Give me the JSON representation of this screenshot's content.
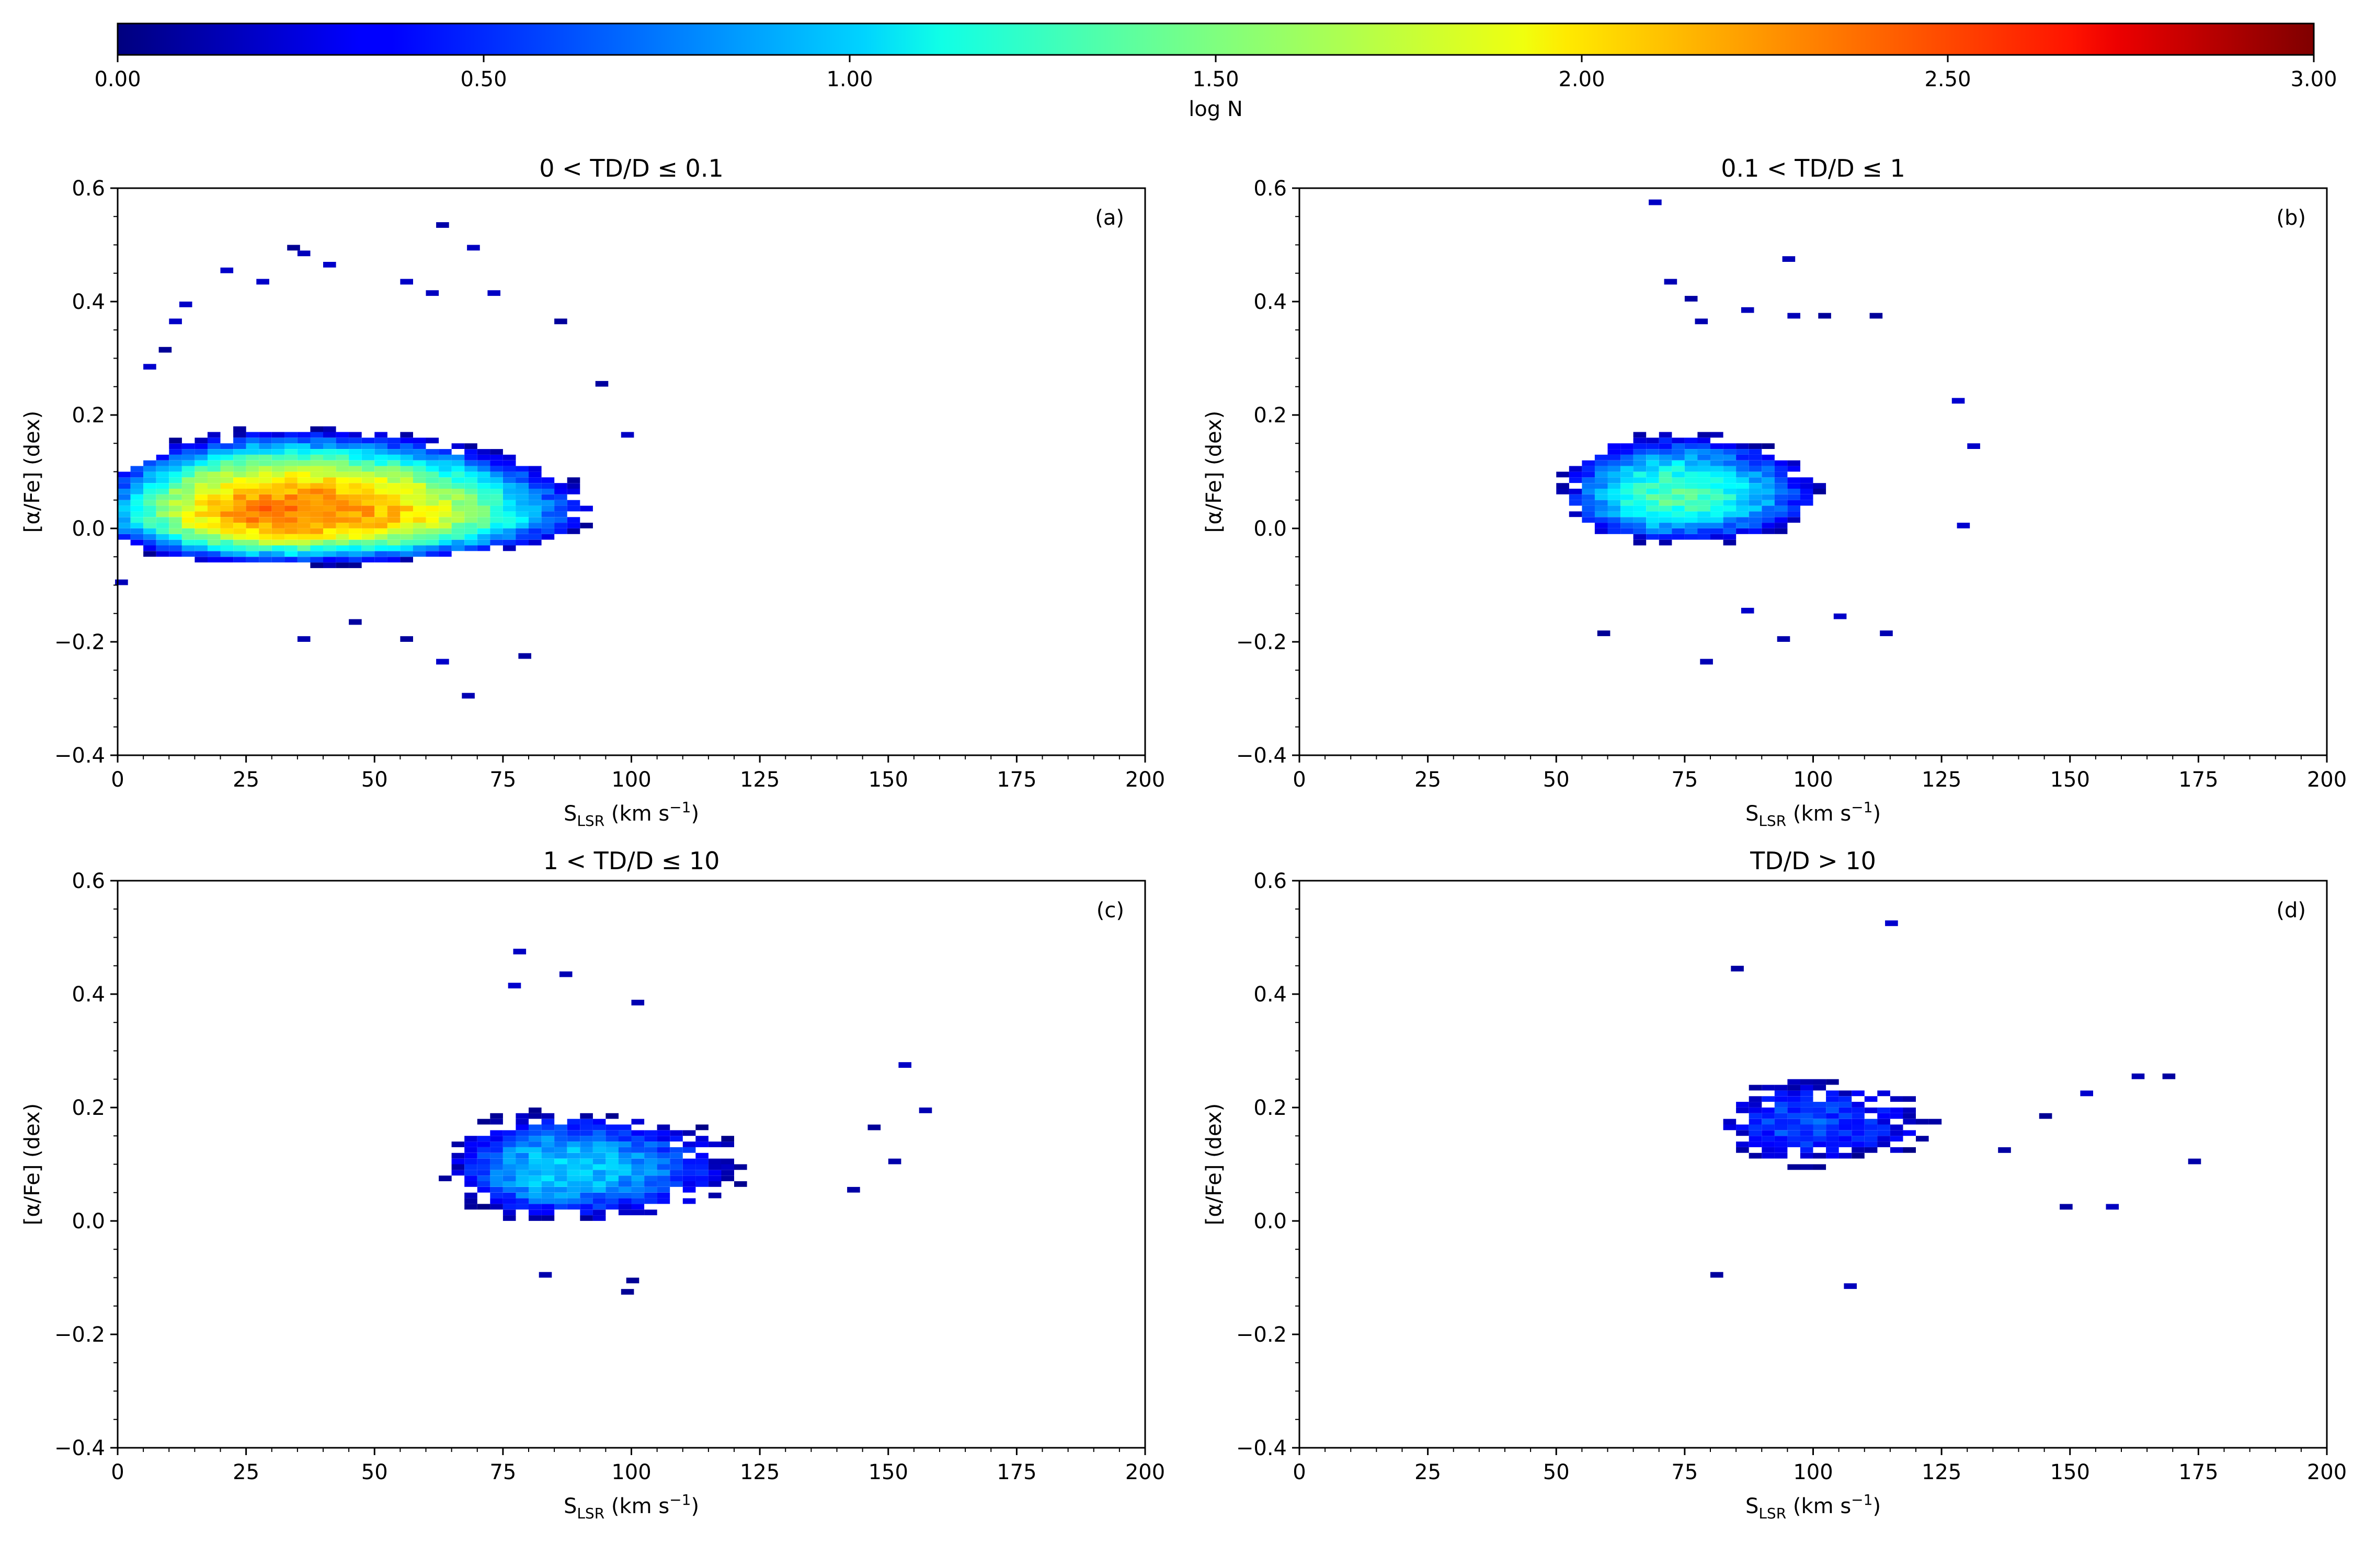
{
  "colorbar": {
    "label": "log N",
    "ticks": [
      "0.00",
      "0.50",
      "1.00",
      "1.50",
      "2.00",
      "2.50",
      "3.00"
    ],
    "range": [
      0,
      3
    ],
    "colormap": "jet"
  },
  "chart_data": [
    {
      "type": "heatmap",
      "panel": "(a)",
      "title": "0 < TD/D ≤ 0.1",
      "xlabel": "S_LSR (km s−1)",
      "ylabel": "[α/Fe] (dex)",
      "xlim": [
        0,
        200
      ],
      "ylim": [
        -0.4,
        0.6
      ],
      "xticks": [
        "0",
        "25",
        "50",
        "75",
        "100",
        "125",
        "150",
        "175",
        "200"
      ],
      "yticks": [
        "−0.4",
        "−0.2",
        "0.0",
        "0.2",
        "0.4",
        "0.6"
      ],
      "bin_width": [
        2.5,
        0.01
      ],
      "peak": {
        "x": 33,
        "y": 0.025,
        "logN": 2.3
      },
      "spread": {
        "x_low": 20,
        "x_high": 30,
        "y_low": 0.045,
        "y_high": 0.075
      },
      "x_range": [
        0,
        100
      ],
      "scatter_points": [
        [
          20,
          0.45
        ],
        [
          33,
          0.49
        ],
        [
          35,
          0.48
        ],
        [
          62,
          0.53
        ],
        [
          68,
          0.49
        ],
        [
          40,
          0.46
        ],
        [
          55,
          0.43
        ],
        [
          27,
          0.43
        ],
        [
          60,
          0.41
        ],
        [
          72,
          0.41
        ],
        [
          85,
          0.36
        ],
        [
          10,
          0.36
        ],
        [
          93,
          0.25
        ],
        [
          98,
          0.16
        ],
        [
          -0.5,
          -0.1
        ],
        [
          45,
          -0.17
        ],
        [
          55,
          -0.2
        ],
        [
          62,
          -0.24
        ],
        [
          67,
          -0.3
        ],
        [
          78,
          -0.23
        ],
        [
          35,
          -0.2
        ],
        [
          5,
          0.28
        ],
        [
          8,
          0.31
        ],
        [
          12,
          0.39
        ]
      ]
    },
    {
      "type": "heatmap",
      "panel": "(b)",
      "title": "0.1 < TD/D ≤ 1",
      "xlabel": "S_LSR (km s−1)",
      "ylabel": "[α/Fe] (dex)",
      "xlim": [
        0,
        200
      ],
      "ylim": [
        -0.4,
        0.6
      ],
      "xticks": [
        "0",
        "25",
        "50",
        "75",
        "100",
        "125",
        "150",
        "175",
        "200"
      ],
      "yticks": [
        "−0.4",
        "−0.2",
        "0.0",
        "0.2",
        "0.4",
        "0.6"
      ],
      "bin_width": [
        2.5,
        0.01
      ],
      "peak": {
        "x": 72,
        "y": 0.055,
        "logN": 1.35
      },
      "spread": {
        "x_low": 14,
        "x_high": 20,
        "y_low": 0.055,
        "y_high": 0.075
      },
      "x_range": [
        44,
        130
      ],
      "scatter_points": [
        [
          68,
          0.57
        ],
        [
          94,
          0.47
        ],
        [
          71,
          0.43
        ],
        [
          75,
          0.4
        ],
        [
          77,
          0.36
        ],
        [
          86,
          0.38
        ],
        [
          58,
          -0.19
        ],
        [
          78,
          -0.24
        ],
        [
          93,
          -0.2
        ],
        [
          113,
          -0.19
        ],
        [
          86,
          -0.15
        ],
        [
          104,
          -0.16
        ],
        [
          128,
          0.0
        ],
        [
          130,
          0.14
        ],
        [
          127,
          0.22
        ],
        [
          95,
          0.37
        ],
        [
          101,
          0.37
        ],
        [
          111,
          0.37
        ]
      ]
    },
    {
      "type": "heatmap",
      "panel": "(c)",
      "title": "1 < TD/D ≤ 10",
      "xlabel": "S_LSR (km s−1)",
      "ylabel": "[α/Fe] (dex)",
      "xlim": [
        0,
        200
      ],
      "ylim": [
        -0.4,
        0.6
      ],
      "xticks": [
        "0",
        "25",
        "50",
        "75",
        "100",
        "125",
        "150",
        "175",
        "200"
      ],
      "yticks": [
        "−0.4",
        "−0.2",
        "0.0",
        "0.2",
        "0.4",
        "0.6"
      ],
      "bin_width": [
        2.5,
        0.01
      ],
      "peak": {
        "x": 85,
        "y": 0.09,
        "logN": 1.0
      },
      "spread": {
        "x_low": 16,
        "x_high": 28,
        "y_low": 0.07,
        "y_high": 0.08
      },
      "x_range": [
        58,
        158
      ],
      "scatter_points": [
        [
          77,
          0.47
        ],
        [
          86,
          0.43
        ],
        [
          100,
          0.38
        ],
        [
          76,
          0.41
        ],
        [
          152,
          0.27
        ],
        [
          156,
          0.19
        ],
        [
          99,
          -0.11
        ],
        [
          98,
          -0.13
        ],
        [
          82,
          -0.1
        ],
        [
          142,
          0.05
        ],
        [
          150,
          0.1
        ],
        [
          146,
          0.16
        ]
      ]
    },
    {
      "type": "heatmap",
      "panel": "(d)",
      "title": "TD/D > 10",
      "xlabel": "S_LSR (km s−1)",
      "ylabel": "[α/Fe] (dex)",
      "xlim": [
        0,
        200
      ],
      "ylim": [
        -0.4,
        0.6
      ],
      "xticks": [
        "0",
        "25",
        "50",
        "75",
        "100",
        "125",
        "150",
        "175",
        "200"
      ],
      "yticks": [
        "−0.4",
        "−0.2",
        "0.0",
        "0.2",
        "0.4",
        "0.6"
      ],
      "bin_width": [
        2.5,
        0.01
      ],
      "peak": {
        "x": 97,
        "y": 0.17,
        "logN": 0.6
      },
      "spread": {
        "x_low": 15,
        "x_high": 28,
        "y_low": 0.07,
        "y_high": 0.08
      },
      "x_range": [
        72,
        175
      ],
      "scatter_points": [
        [
          114,
          0.52
        ],
        [
          84,
          0.44
        ],
        [
          173,
          0.1
        ],
        [
          168,
          0.25
        ],
        [
          162,
          0.25
        ],
        [
          157,
          0.02
        ],
        [
          148,
          0.02
        ],
        [
          106,
          -0.12
        ],
        [
          80,
          -0.1
        ],
        [
          152,
          0.22
        ],
        [
          144,
          0.18
        ],
        [
          136,
          0.12
        ]
      ]
    }
  ]
}
